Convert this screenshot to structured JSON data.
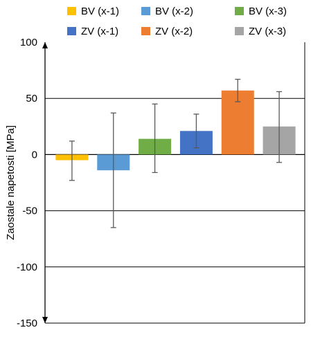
{
  "chart_data": {
    "type": "bar",
    "ylabel": "Zaostale napetosti [MPa]",
    "ylim": [
      -150,
      100
    ],
    "yticks": [
      -150,
      -100,
      -50,
      0,
      50,
      100
    ],
    "ytick_labels": [
      "-150",
      "-100",
      "-50",
      "0",
      "50",
      "100"
    ],
    "grid": true,
    "legend_position": "top",
    "series": [
      {
        "name": "BV (x-1)",
        "value": -5,
        "error_low": -23,
        "error_high": 12,
        "color": "#FFC000"
      },
      {
        "name": "BV (x-2)",
        "value": -14,
        "error_low": -65,
        "error_high": 37,
        "color": "#5B9BD5"
      },
      {
        "name": "BV (x-3)",
        "value": 14,
        "error_low": -16,
        "error_high": 45,
        "color": "#70AD47"
      },
      {
        "name": "ZV (x-1)",
        "value": 21,
        "error_low": 6,
        "error_high": 36,
        "color": "#4472C4"
      },
      {
        "name": "ZV (x-2)",
        "value": 57,
        "error_low": 47,
        "error_high": 67,
        "color": "#ED7D31"
      },
      {
        "name": "ZV (x-3)",
        "value": 25,
        "error_low": -7,
        "error_high": 56,
        "color": "#A5A5A5"
      }
    ]
  }
}
